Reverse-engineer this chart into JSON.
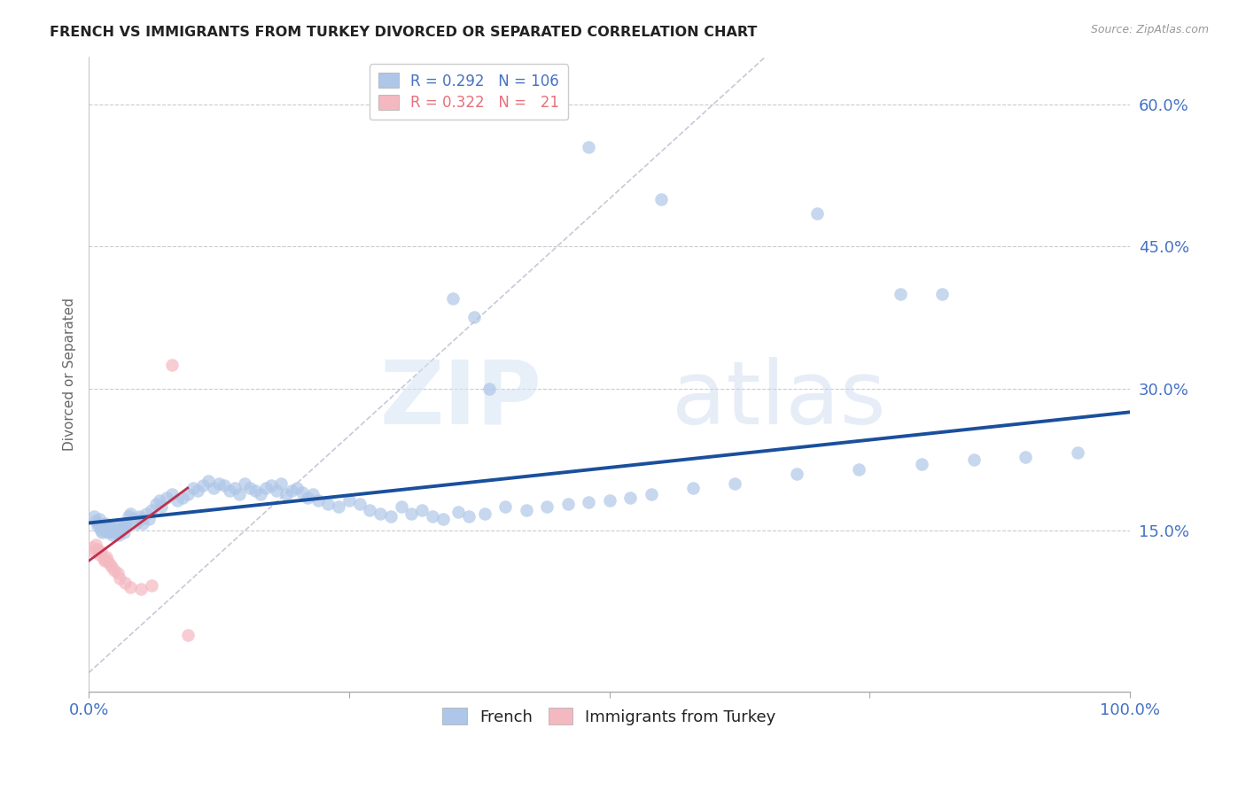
{
  "title": "FRENCH VS IMMIGRANTS FROM TURKEY DIVORCED OR SEPARATED CORRELATION CHART",
  "source": "Source: ZipAtlas.com",
  "ylabel": "Divorced or Separated",
  "watermark_zip": "ZIP",
  "watermark_atlas": "atlas",
  "xlim": [
    0.0,
    1.0
  ],
  "ylim": [
    -0.02,
    0.65
  ],
  "yticks": [
    0.15,
    0.3,
    0.45,
    0.6
  ],
  "yticklabels": [
    "15.0%",
    "30.0%",
    "45.0%",
    "60.0%"
  ],
  "blue_color": "#4472c4",
  "blue_scatter_color": "#aec6e8",
  "pink_color": "#e8707a",
  "pink_scatter_color": "#f4b8c1",
  "blue_trendline_color": "#1a4f9c",
  "pink_trendline_color": "#c0304a",
  "diag_line_color": "#c8c8d8",
  "french_x": [
    0.005,
    0.007,
    0.008,
    0.009,
    0.01,
    0.011,
    0.012,
    0.013,
    0.014,
    0.015,
    0.016,
    0.017,
    0.018,
    0.019,
    0.02,
    0.021,
    0.022,
    0.023,
    0.024,
    0.025,
    0.026,
    0.027,
    0.028,
    0.029,
    0.03,
    0.032,
    0.033,
    0.034,
    0.035,
    0.036,
    0.038,
    0.04,
    0.042,
    0.045,
    0.048,
    0.05,
    0.052,
    0.055,
    0.058,
    0.06,
    0.065,
    0.068,
    0.07,
    0.075,
    0.08,
    0.085,
    0.09,
    0.095,
    0.1,
    0.105,
    0.11,
    0.115,
    0.12,
    0.125,
    0.13,
    0.135,
    0.14,
    0.145,
    0.15,
    0.155,
    0.16,
    0.165,
    0.17,
    0.175,
    0.18,
    0.185,
    0.19,
    0.195,
    0.2,
    0.205,
    0.21,
    0.215,
    0.22,
    0.23,
    0.24,
    0.25,
    0.26,
    0.27,
    0.28,
    0.29,
    0.3,
    0.31,
    0.32,
    0.33,
    0.34,
    0.355,
    0.365,
    0.38,
    0.4,
    0.42,
    0.44,
    0.46,
    0.48,
    0.5,
    0.52,
    0.54,
    0.58,
    0.62,
    0.68,
    0.74,
    0.8,
    0.85,
    0.9,
    0.95,
    0.37,
    0.385
  ],
  "french_y": [
    0.165,
    0.16,
    0.155,
    0.158,
    0.162,
    0.155,
    0.15,
    0.148,
    0.152,
    0.155,
    0.158,
    0.152,
    0.148,
    0.15,
    0.155,
    0.15,
    0.148,
    0.145,
    0.15,
    0.155,
    0.148,
    0.152,
    0.148,
    0.145,
    0.15,
    0.155,
    0.152,
    0.148,
    0.155,
    0.158,
    0.165,
    0.168,
    0.162,
    0.158,
    0.165,
    0.162,
    0.158,
    0.168,
    0.162,
    0.172,
    0.178,
    0.182,
    0.175,
    0.185,
    0.188,
    0.182,
    0.185,
    0.188,
    0.195,
    0.192,
    0.198,
    0.202,
    0.195,
    0.2,
    0.198,
    0.192,
    0.195,
    0.188,
    0.2,
    0.195,
    0.192,
    0.188,
    0.195,
    0.198,
    0.192,
    0.2,
    0.188,
    0.192,
    0.195,
    0.19,
    0.185,
    0.188,
    0.182,
    0.178,
    0.175,
    0.182,
    0.178,
    0.172,
    0.168,
    0.165,
    0.175,
    0.168,
    0.172,
    0.165,
    0.162,
    0.17,
    0.165,
    0.168,
    0.175,
    0.172,
    0.175,
    0.178,
    0.18,
    0.182,
    0.185,
    0.188,
    0.195,
    0.2,
    0.21,
    0.215,
    0.22,
    0.225,
    0.228,
    0.232,
    0.375,
    0.3
  ],
  "french_outliers_x": [
    0.35,
    0.48,
    0.55,
    0.7,
    0.78,
    0.82
  ],
  "french_outliers_y": [
    0.395,
    0.555,
    0.5,
    0.485,
    0.4,
    0.4
  ],
  "turkey_x": [
    0.003,
    0.005,
    0.007,
    0.008,
    0.01,
    0.012,
    0.014,
    0.015,
    0.017,
    0.018,
    0.02,
    0.022,
    0.025,
    0.028,
    0.03,
    0.035,
    0.04,
    0.05,
    0.06,
    0.08,
    0.095
  ],
  "turkey_y": [
    0.132,
    0.128,
    0.135,
    0.13,
    0.125,
    0.128,
    0.12,
    0.118,
    0.122,
    0.118,
    0.115,
    0.112,
    0.108,
    0.105,
    0.1,
    0.095,
    0.09,
    0.088,
    0.092,
    0.325,
    0.04
  ],
  "turkey_outlier_x": [
    0.02
  ],
  "turkey_outlier_y": [
    0.32
  ],
  "blue_trend_x0": 0.0,
  "blue_trend_x1": 1.0,
  "blue_trend_y0": 0.158,
  "blue_trend_y1": 0.275,
  "pink_trend_x0": 0.0,
  "pink_trend_x1": 0.095,
  "pink_trend_y0": 0.118,
  "pink_trend_y1": 0.195
}
